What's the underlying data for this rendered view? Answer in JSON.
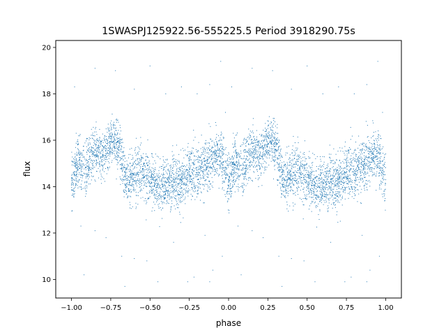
{
  "chart_data": {
    "type": "scatter",
    "title": "1SWASPJ125922.56-555225.5 Period 3918290.75s",
    "xlabel": "phase",
    "ylabel": "flux",
    "xlim": [
      -1.1,
      1.1
    ],
    "ylim": [
      9.2,
      20.3
    ],
    "x_ticks": [
      -1.0,
      -0.75,
      -0.5,
      -0.25,
      0.0,
      0.25,
      0.5,
      0.75,
      1.0
    ],
    "x_tick_labels": [
      "−1.00",
      "−0.75",
      "−0.50",
      "−0.25",
      "0.00",
      "0.25",
      "0.50",
      "0.75",
      "1.00"
    ],
    "y_ticks": [
      10,
      12,
      14,
      16,
      18,
      20
    ],
    "y_tick_labels": [
      "10",
      "12",
      "14",
      "16",
      "18",
      "20"
    ],
    "grid": false,
    "marker_color": "#1f77b4",
    "series": [
      {
        "trend": {
          "phase": [
            -1.0,
            -0.95,
            -0.9,
            -0.85,
            -0.8,
            -0.75,
            -0.7,
            -0.65,
            -0.6,
            -0.55,
            -0.5,
            -0.45,
            -0.4,
            -0.35,
            -0.3,
            -0.25,
            -0.2,
            -0.15,
            -0.1,
            -0.05,
            0.0
          ],
          "flux": [
            14.4,
            15.2,
            14.8,
            15.6,
            15.3,
            16.0,
            15.8,
            14.2,
            14.5,
            14.6,
            14.3,
            14.0,
            14.1,
            14.2,
            14.1,
            14.6,
            14.5,
            14.9,
            15.2,
            15.4,
            14.2
          ]
        },
        "points": [
          [
            -0.99,
            14.1
          ],
          [
            -0.98,
            13.7
          ],
          [
            -0.97,
            16.3
          ],
          [
            -0.96,
            15.8
          ],
          [
            -0.95,
            14.6
          ],
          [
            -0.94,
            14.0
          ],
          [
            -0.9,
            14.9
          ],
          [
            -0.88,
            15.5
          ],
          [
            -0.86,
            16.2
          ],
          [
            -0.84,
            15.1
          ],
          [
            -0.82,
            15.7
          ],
          [
            -0.8,
            15.4
          ],
          [
            -0.78,
            16.0
          ],
          [
            -0.76,
            16.1
          ],
          [
            -0.74,
            15.9
          ],
          [
            -0.72,
            16.0
          ],
          [
            -0.7,
            15.6
          ],
          [
            -0.68,
            15.2
          ],
          [
            -0.66,
            14.1
          ],
          [
            -0.64,
            13.6
          ],
          [
            -0.62,
            14.4
          ],
          [
            -0.6,
            14.8
          ],
          [
            -0.58,
            15.2
          ],
          [
            -0.56,
            14.6
          ],
          [
            -0.54,
            14.2
          ],
          [
            -0.52,
            14.5
          ],
          [
            -0.5,
            14.0
          ],
          [
            -0.48,
            13.9
          ],
          [
            -0.46,
            14.3
          ],
          [
            -0.44,
            14.0
          ],
          [
            -0.42,
            13.8
          ],
          [
            -0.4,
            14.2
          ],
          [
            -0.38,
            14.4
          ],
          [
            -0.36,
            14.0
          ],
          [
            -0.34,
            13.6
          ],
          [
            -0.32,
            14.1
          ],
          [
            -0.3,
            14.3
          ],
          [
            -0.28,
            13.9
          ],
          [
            -0.26,
            14.6
          ],
          [
            -0.24,
            14.9
          ],
          [
            -0.22,
            14.0
          ],
          [
            -0.2,
            13.7
          ],
          [
            -0.18,
            14.4
          ],
          [
            -0.16,
            13.3
          ],
          [
            -0.14,
            14.8
          ],
          [
            -0.12,
            15.0
          ],
          [
            -0.1,
            14.2
          ],
          [
            -0.08,
            15.4
          ],
          [
            -0.06,
            15.6
          ],
          [
            -0.04,
            13.9
          ],
          [
            -0.02,
            15.1
          ],
          [
            0.0,
            14.3
          ],
          [
            -0.98,
            18.3
          ],
          [
            -0.85,
            19.1
          ],
          [
            -0.72,
            19.0
          ],
          [
            -0.6,
            18.2
          ],
          [
            -0.5,
            19.2
          ],
          [
            -0.4,
            18.0
          ],
          [
            -0.3,
            18.3
          ],
          [
            -0.2,
            18.0
          ],
          [
            -0.12,
            18.4
          ],
          [
            -0.05,
            19.4
          ],
          [
            -0.02,
            17.2
          ],
          [
            -0.94,
            12.3
          ],
          [
            -0.85,
            12.1
          ],
          [
            -0.78,
            11.8
          ],
          [
            -0.68,
            11.0
          ],
          [
            -0.6,
            10.9
          ],
          [
            -0.52,
            10.8
          ],
          [
            -0.45,
            9.9
          ],
          [
            -0.35,
            11.6
          ],
          [
            -0.22,
            10.1
          ],
          [
            -0.15,
            11.9
          ],
          [
            -0.1,
            10.4
          ],
          [
            -0.04,
            11.0
          ],
          [
            -0.92,
            10.2
          ],
          [
            -0.66,
            9.7
          ],
          [
            -0.26,
            9.9
          ],
          [
            -0.12,
            9.9
          ]
        ]
      }
    ]
  }
}
